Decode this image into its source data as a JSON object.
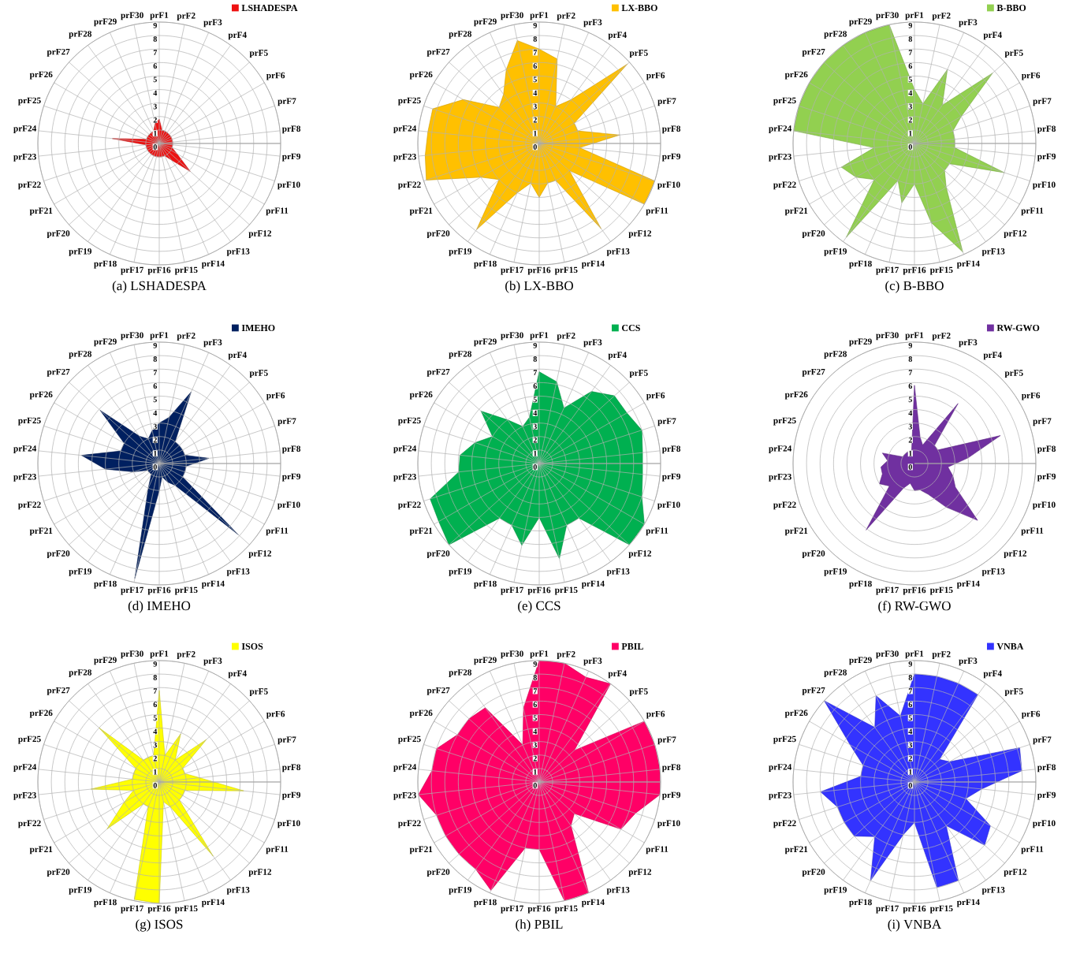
{
  "chart_data": [
    {
      "type": "radar",
      "title": "(a) LSHADESPA",
      "categories": [
        "prF1",
        "prF2",
        "prF3",
        "prF4",
        "prF5",
        "prF6",
        "prF7",
        "prF8",
        "prF9",
        "prF10",
        "prF11",
        "prF12",
        "prF13",
        "prF14",
        "prF15",
        "prF16",
        "prF17",
        "prF18",
        "prF19",
        "prF20",
        "prF21",
        "prF22",
        "prF23",
        "prF24",
        "prF25",
        "prF26",
        "prF27",
        "prF28",
        "prF29",
        "prF30"
      ],
      "ylim": [
        0,
        9
      ],
      "yticks": [
        0,
        1,
        2,
        3,
        4,
        5,
        6,
        7,
        8,
        9
      ],
      "grid": true,
      "legend": "top right",
      "series": [
        {
          "name": "LSHADESPA",
          "color": "#ee1111",
          "values": [
            1.8,
            1,
            1,
            1,
            1,
            1,
            1,
            1,
            1,
            1,
            1.5,
            3.1,
            1.5,
            1,
            1,
            1,
            1,
            1,
            1,
            1,
            1,
            1,
            1,
            3.5,
            1,
            1,
            1,
            1,
            1,
            1.5
          ]
        }
      ]
    },
    {
      "type": "radar",
      "title": "(b) LX-BBO",
      "categories": [
        "prF1",
        "prF2",
        "prF3",
        "prF4",
        "prF5",
        "prF6",
        "prF7",
        "prF8",
        "prF9",
        "prF10",
        "prF11",
        "prF12",
        "prF13",
        "prF14",
        "prF15",
        "prF16",
        "prF17",
        "prF18",
        "prF19",
        "prF20",
        "prF21",
        "prF22",
        "prF23",
        "prF24",
        "prF25",
        "prF26",
        "prF27",
        "prF28",
        "prF29",
        "prF30"
      ],
      "ylim": [
        0,
        9
      ],
      "yticks": [
        0,
        1,
        2,
        3,
        4,
        5,
        6,
        7,
        8,
        9
      ],
      "grid": true,
      "legend": "top right",
      "series": [
        {
          "name": "LX-BBO",
          "color": "#ffc000",
          "values": [
            7,
            6.4,
            3,
            4,
            8.8,
            3,
            3,
            6,
            3,
            9,
            9,
            3,
            7.8,
            3,
            3,
            4,
            3,
            4,
            7.9,
            4,
            5,
            8.8,
            8.5,
            8.3,
            8.3,
            6.5,
            4,
            4.5,
            6,
            7.8
          ]
        }
      ]
    },
    {
      "type": "radar",
      "title": "(c) B-BBO",
      "categories": [
        "prF1",
        "prF2",
        "prF3",
        "prF4",
        "prF5",
        "prF6",
        "prF7",
        "prF8",
        "prF9",
        "prF10",
        "prF11",
        "prF12",
        "prF13",
        "prF14",
        "prF15",
        "prF16",
        "prF17",
        "prF18",
        "prF19",
        "prF20",
        "prF21",
        "prF22",
        "prF23",
        "prF24",
        "prF25",
        "prF26",
        "prF27",
        "prF28",
        "prF29",
        "prF30"
      ],
      "ylim": [
        0,
        9
      ],
      "yticks": [
        0,
        1,
        2,
        3,
        4,
        5,
        6,
        7,
        8,
        9
      ],
      "grid": true,
      "legend": "top right",
      "series": [
        {
          "name": "B-BBO",
          "color": "#92d050",
          "values": [
            4,
            3,
            6,
            3.5,
            7.8,
            4,
            3,
            3,
            3,
            7,
            3,
            3,
            4,
            8.8,
            6,
            3,
            4.5,
            3,
            8.6,
            4,
            5,
            5.7,
            3,
            9,
            9,
            9,
            9,
            9,
            9,
            9
          ]
        }
      ]
    },
    {
      "type": "radar",
      "title": "(d) IMEHO",
      "categories": [
        "prF1",
        "prF2",
        "prF3",
        "prF4",
        "prF5",
        "prF6",
        "prF7",
        "prF8",
        "prF9",
        "prF10",
        "prF11",
        "prF12",
        "prF13",
        "prF14",
        "prF15",
        "prF16",
        "prF17",
        "prF18",
        "prF19",
        "prF20",
        "prF21",
        "prF22",
        "prF23",
        "prF24",
        "prF25",
        "prF26",
        "prF27",
        "prF28",
        "prF29",
        "prF30"
      ],
      "ylim": [
        0,
        9
      ],
      "yticks": [
        0,
        1,
        2,
        3,
        4,
        5,
        6,
        7,
        8,
        9
      ],
      "grid": true,
      "legend": "top right",
      "series": [
        {
          "name": "IMEHO",
          "color": "#002060",
          "values": [
            3,
            3.5,
            5.8,
            2,
            2,
            2,
            2,
            3.7,
            2,
            2,
            2,
            7.9,
            2,
            1.5,
            1,
            2,
            8.7,
            2,
            1,
            1,
            1,
            2,
            4,
            5.8,
            3,
            3,
            5.9,
            2.5,
            2,
            2.5
          ]
        }
      ]
    },
    {
      "type": "radar",
      "title": "(e) CCS",
      "categories": [
        "prF1",
        "prF2",
        "prF3",
        "prF4",
        "prF5",
        "prF6",
        "prF7",
        "prF8",
        "prF9",
        "prF10",
        "prF11",
        "prF12",
        "prF13",
        "prF14",
        "prF15",
        "prF16",
        "prF17",
        "prF18",
        "prF19",
        "prF20",
        "prF21",
        "prF22",
        "prF23",
        "prF24",
        "prF25",
        "prF26",
        "prF27",
        "prF28",
        "prF29",
        "prF30"
      ],
      "ylim": [
        0,
        9
      ],
      "yticks": [
        0,
        1,
        2,
        3,
        4,
        5,
        6,
        7,
        8,
        9
      ],
      "grid": true,
      "legend": "top right",
      "series": [
        {
          "name": "CCS",
          "color": "#00b050",
          "values": [
            6.8,
            6.2,
            4.5,
            6.6,
            7.5,
            7.5,
            8,
            7.7,
            7.7,
            8,
            9,
            9,
            5,
            5,
            7.2,
            4,
            6.2,
            5,
            5,
            9,
            8.6,
            8.5,
            6,
            5.9,
            5,
            4,
            5.8,
            4,
            3,
            3.5
          ]
        }
      ]
    },
    {
      "type": "radar",
      "title": "(f) RW-GWO",
      "categories": [
        "prF1",
        "prF2",
        "prF3",
        "prF4",
        "prF5",
        "prF6",
        "prF7",
        "prF8",
        "prF9",
        "prF10",
        "prF11",
        "prF12",
        "prF13",
        "prF14",
        "prF15",
        "prF16",
        "prF17",
        "prF18",
        "prF19",
        "prF20",
        "prF21",
        "prF22",
        "prF23",
        "prF24",
        "prF25",
        "prF26",
        "prF27",
        "prF28",
        "prF29",
        "prF30"
      ],
      "ylim": [
        0,
        9
      ],
      "yticks": [
        0,
        1,
        2,
        3,
        4,
        5,
        6,
        7,
        8,
        9
      ],
      "grid": "y",
      "legend": "top right",
      "series": [
        {
          "name": "RW-GWO",
          "color": "#7030a0",
          "values": [
            5.8,
            2,
            1.5,
            5.5,
            2,
            2,
            6.7,
            4,
            2.5,
            3,
            3.5,
            6.3,
            4,
            2.5,
            2,
            2,
            1.5,
            2,
            6.1,
            2.5,
            3,
            2.5,
            2.5,
            2,
            2.5,
            1,
            1,
            1,
            1,
            1
          ]
        }
      ]
    },
    {
      "type": "radar",
      "title": "(g) ISOS",
      "categories": [
        "prF1",
        "prF2",
        "prF3",
        "prF4",
        "prF5",
        "prF6",
        "prF7",
        "prF8",
        "prF9",
        "prF10",
        "prF11",
        "prF12",
        "prF13",
        "prF14",
        "prF15",
        "prF16",
        "prF17",
        "prF18",
        "prF19",
        "prF20",
        "prF21",
        "prF22",
        "prF23",
        "prF24",
        "prF25",
        "prF26",
        "prF27",
        "prF28",
        "prF29",
        "prF30"
      ],
      "ylim": [
        0,
        9
      ],
      "yticks": [
        0,
        1,
        2,
        3,
        4,
        5,
        6,
        7,
        8,
        9
      ],
      "grid": true,
      "legend": "top right",
      "series": [
        {
          "name": "ISOS",
          "color": "#ffff00",
          "values": [
            6.8,
            2,
            3.9,
            2,
            4.7,
            2,
            2,
            3,
            6.3,
            2,
            2,
            2,
            6.8,
            2,
            1.5,
            9,
            8.9,
            2,
            2,
            5.2,
            3,
            2,
            5.1,
            2,
            2,
            2,
            6,
            2,
            2,
            2
          ]
        }
      ]
    },
    {
      "type": "radar",
      "title": "(h) PBIL",
      "categories": [
        "prF1",
        "prF2",
        "prF3",
        "prF4",
        "prF5",
        "prF6",
        "prF7",
        "prF8",
        "prF9",
        "prF10",
        "prF11",
        "prF12",
        "prF13",
        "prF14",
        "prF15",
        "prF16",
        "prF17",
        "prF18",
        "prF19",
        "prF20",
        "prF21",
        "prF22",
        "prF23",
        "prF24",
        "prF25",
        "prF26",
        "prF27",
        "prF28",
        "prF29",
        "prF30"
      ],
      "ylim": [
        0,
        9
      ],
      "yticks": [
        0,
        1,
        2,
        3,
        4,
        5,
        6,
        7,
        8,
        9
      ],
      "grid": true,
      "legend": "top right",
      "series": [
        {
          "name": "PBIL",
          "color": "#ff0066",
          "values": [
            9,
            9,
            8.5,
            9,
            3.5,
            9,
            9,
            9,
            9,
            7.5,
            7,
            3.5,
            4,
            9,
            9,
            5,
            5,
            8.8,
            8,
            8,
            8,
            8,
            9,
            8,
            8,
            7,
            7,
            6.8,
            3,
            5.6
          ]
        }
      ]
    },
    {
      "type": "radar",
      "title": "(i) VNBA",
      "categories": [
        "prF1",
        "prF2",
        "prF3",
        "prF4",
        "prF5",
        "prF6",
        "prF7",
        "prF8",
        "prF9",
        "prF10",
        "prF11",
        "prF12",
        "prF13",
        "prF14",
        "prF15",
        "prF16",
        "prF17",
        "prF18",
        "prF19",
        "prF20",
        "prF21",
        "prF22",
        "prF23",
        "prF24",
        "prF25",
        "prF26",
        "prF27",
        "prF28",
        "prF29",
        "prF30"
      ],
      "ylim": [
        0,
        9
      ],
      "yticks": [
        0,
        1,
        2,
        3,
        4,
        5,
        6,
        7,
        8,
        9
      ],
      "grid": true,
      "legend": "top right",
      "series": [
        {
          "name": "VNBA",
          "color": "#3333ff",
          "values": [
            8,
            8,
            8,
            8,
            2.5,
            3,
            8.2,
            8,
            5,
            4,
            6.5,
            7,
            4,
            8,
            8,
            3,
            4,
            8,
            5,
            6,
            6,
            6,
            7,
            4,
            4,
            5.5,
            9,
            5,
            7,
            5
          ]
        }
      ]
    }
  ]
}
